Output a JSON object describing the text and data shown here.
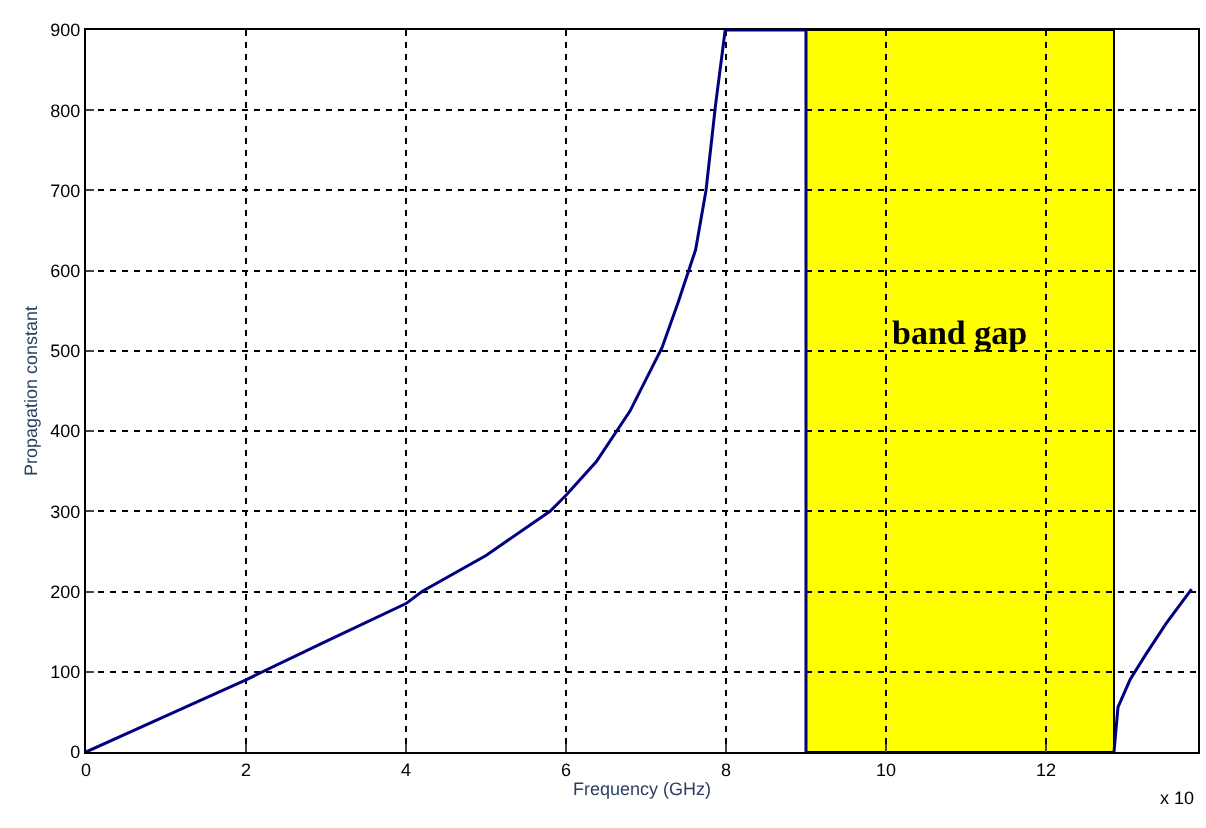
{
  "chart_data": {
    "type": "line",
    "xlabel": "Frequency (GHz)",
    "ylabel": "Propagation constant",
    "annotations": [
      "x 10"
    ],
    "series": [
      {
        "color": "#000080",
        "x": [
          0,
          1,
          2,
          3,
          4,
          4.2,
          5,
          5.8,
          6,
          6.38,
          6.8,
          7.2,
          7.4,
          7.62,
          7.75,
          7.87,
          7.99,
          9,
          9
        ],
        "values": [
          0,
          45,
          90,
          138,
          185,
          200,
          245,
          300,
          320,
          362,
          425,
          504,
          560,
          626,
          700,
          807,
          900,
          900,
          0
        ]
      },
      {
        "color": "#000080",
        "x": [
          12.85,
          12.9,
          13.05,
          13.25,
          13.5,
          13.82
        ],
        "values": [
          0,
          56,
          90,
          122,
          160,
          203
        ]
      }
    ],
    "bands": [
      {
        "axis": "x",
        "from": 9,
        "to": 12.85,
        "label": "band gap",
        "color": "#ffff00"
      }
    ],
    "xlim": [
      0,
      13.9
    ],
    "ylim": [
      0,
      900
    ],
    "xticks": [
      0,
      2,
      4,
      6,
      8,
      10,
      12
    ],
    "yticks": [
      0,
      100,
      200,
      300,
      400,
      500,
      600,
      700,
      800,
      900
    ],
    "grid": true,
    "line_style": "solid"
  }
}
